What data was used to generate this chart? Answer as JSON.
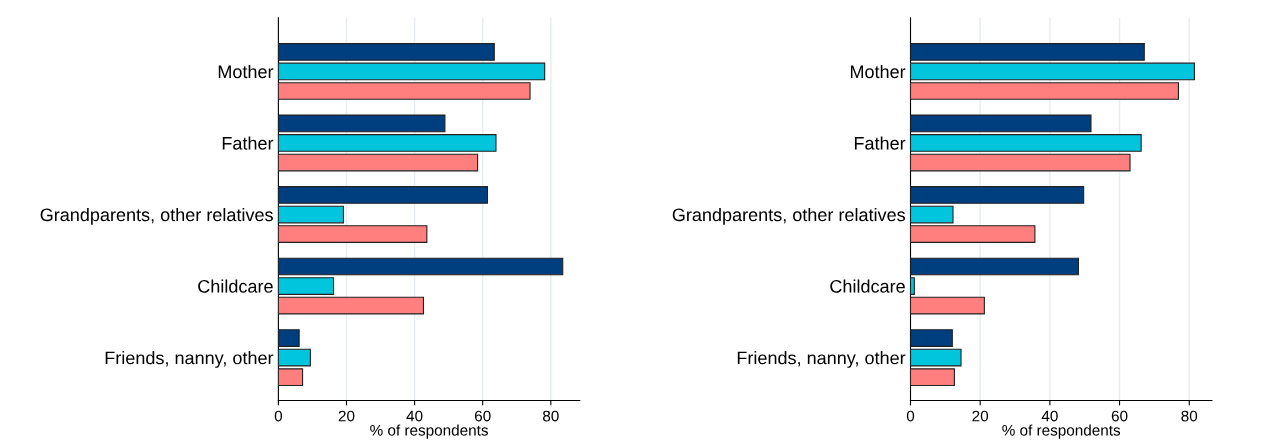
{
  "chart_data": [
    {
      "type": "bar",
      "orientation": "horizontal",
      "categories": [
        "Mother",
        "Father",
        "Grandparents, other relatives",
        "Childcare",
        "Friends, nanny, other"
      ],
      "xlabel": "% of respondents",
      "xlim": [
        0,
        88.5
      ],
      "xticks": [
        0,
        20,
        40,
        60,
        80
      ],
      "grid": "x",
      "legend": false,
      "series": [
        {
          "color": "#003f7f",
          "values": [
            63.4,
            48.9,
            61.4,
            83.5,
            6.1
          ]
        },
        {
          "color": "#00c5dc",
          "values": [
            78.2,
            63.9,
            19.1,
            16.2,
            9.4
          ]
        },
        {
          "color": "#ff7f7f",
          "values": [
            73.9,
            58.5,
            43.6,
            42.6,
            7.1
          ]
        }
      ]
    },
    {
      "type": "bar",
      "orientation": "horizontal",
      "categories": [
        "Mother",
        "Father",
        "Grandparents, other relatives",
        "Childcare",
        "Friends, nanny, other"
      ],
      "xlabel": "% of respondents",
      "xlim": [
        0,
        86.5
      ],
      "xticks": [
        0,
        20,
        40,
        60,
        80
      ],
      "grid": "x",
      "legend": false,
      "series": [
        {
          "color": "#003f7f",
          "values": [
            67.1,
            51.8,
            49.7,
            48.2,
            12.0
          ]
        },
        {
          "color": "#00c5dc",
          "values": [
            81.5,
            66.2,
            12.2,
            1.1,
            14.5
          ]
        },
        {
          "color": "#ff7f7f",
          "values": [
            76.9,
            63.0,
            35.7,
            21.2,
            12.6
          ]
        }
      ]
    }
  ]
}
